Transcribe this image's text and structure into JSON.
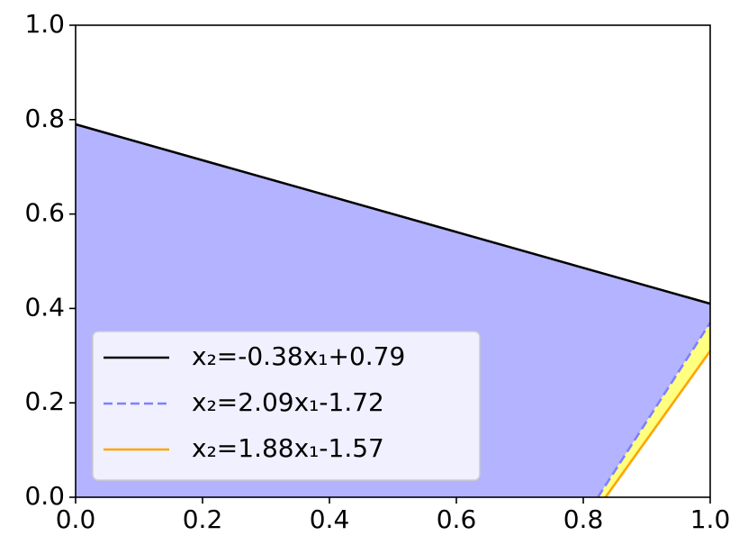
{
  "chart_data": {
    "type": "line",
    "xlim": [
      0,
      1
    ],
    "ylim": [
      0,
      1
    ],
    "xticks": [
      {
        "value": 0,
        "label": "0.0"
      },
      {
        "value": 0.2,
        "label": "0.2"
      },
      {
        "value": 0.4,
        "label": "0.4"
      },
      {
        "value": 0.6,
        "label": "0.6"
      },
      {
        "value": 0.8,
        "label": "0.8"
      },
      {
        "value": 1,
        "label": "1.0"
      }
    ],
    "yticks": [
      {
        "value": 0,
        "label": "0.0"
      },
      {
        "value": 0.2,
        "label": "0.2"
      },
      {
        "value": 0.4,
        "label": "0.4"
      },
      {
        "value": 0.6,
        "label": "0.6"
      },
      {
        "value": 0.8,
        "label": "0.8"
      },
      {
        "value": 1,
        "label": "1.0"
      }
    ],
    "legend": "lower left",
    "series": [
      {
        "name": "x₂=-0.38x₁+0.79",
        "color": "#000000",
        "style": "solid",
        "x": [
          0,
          1
        ],
        "values": [
          0.79,
          0.41
        ]
      },
      {
        "name": "x₂=2.09x₁-1.72",
        "color": "#7f7fff",
        "style": "dashed",
        "x": [
          0.823,
          1
        ],
        "values": [
          0,
          0.37
        ]
      },
      {
        "name": "x₂=1.88x₁-1.57",
        "color": "#ffa500",
        "style": "solid",
        "x": [
          0.835,
          1
        ],
        "values": [
          0,
          0.31
        ]
      }
    ],
    "fills": [
      {
        "color": "#b3b3ff"
      },
      {
        "color": "#ffff80"
      }
    ]
  }
}
